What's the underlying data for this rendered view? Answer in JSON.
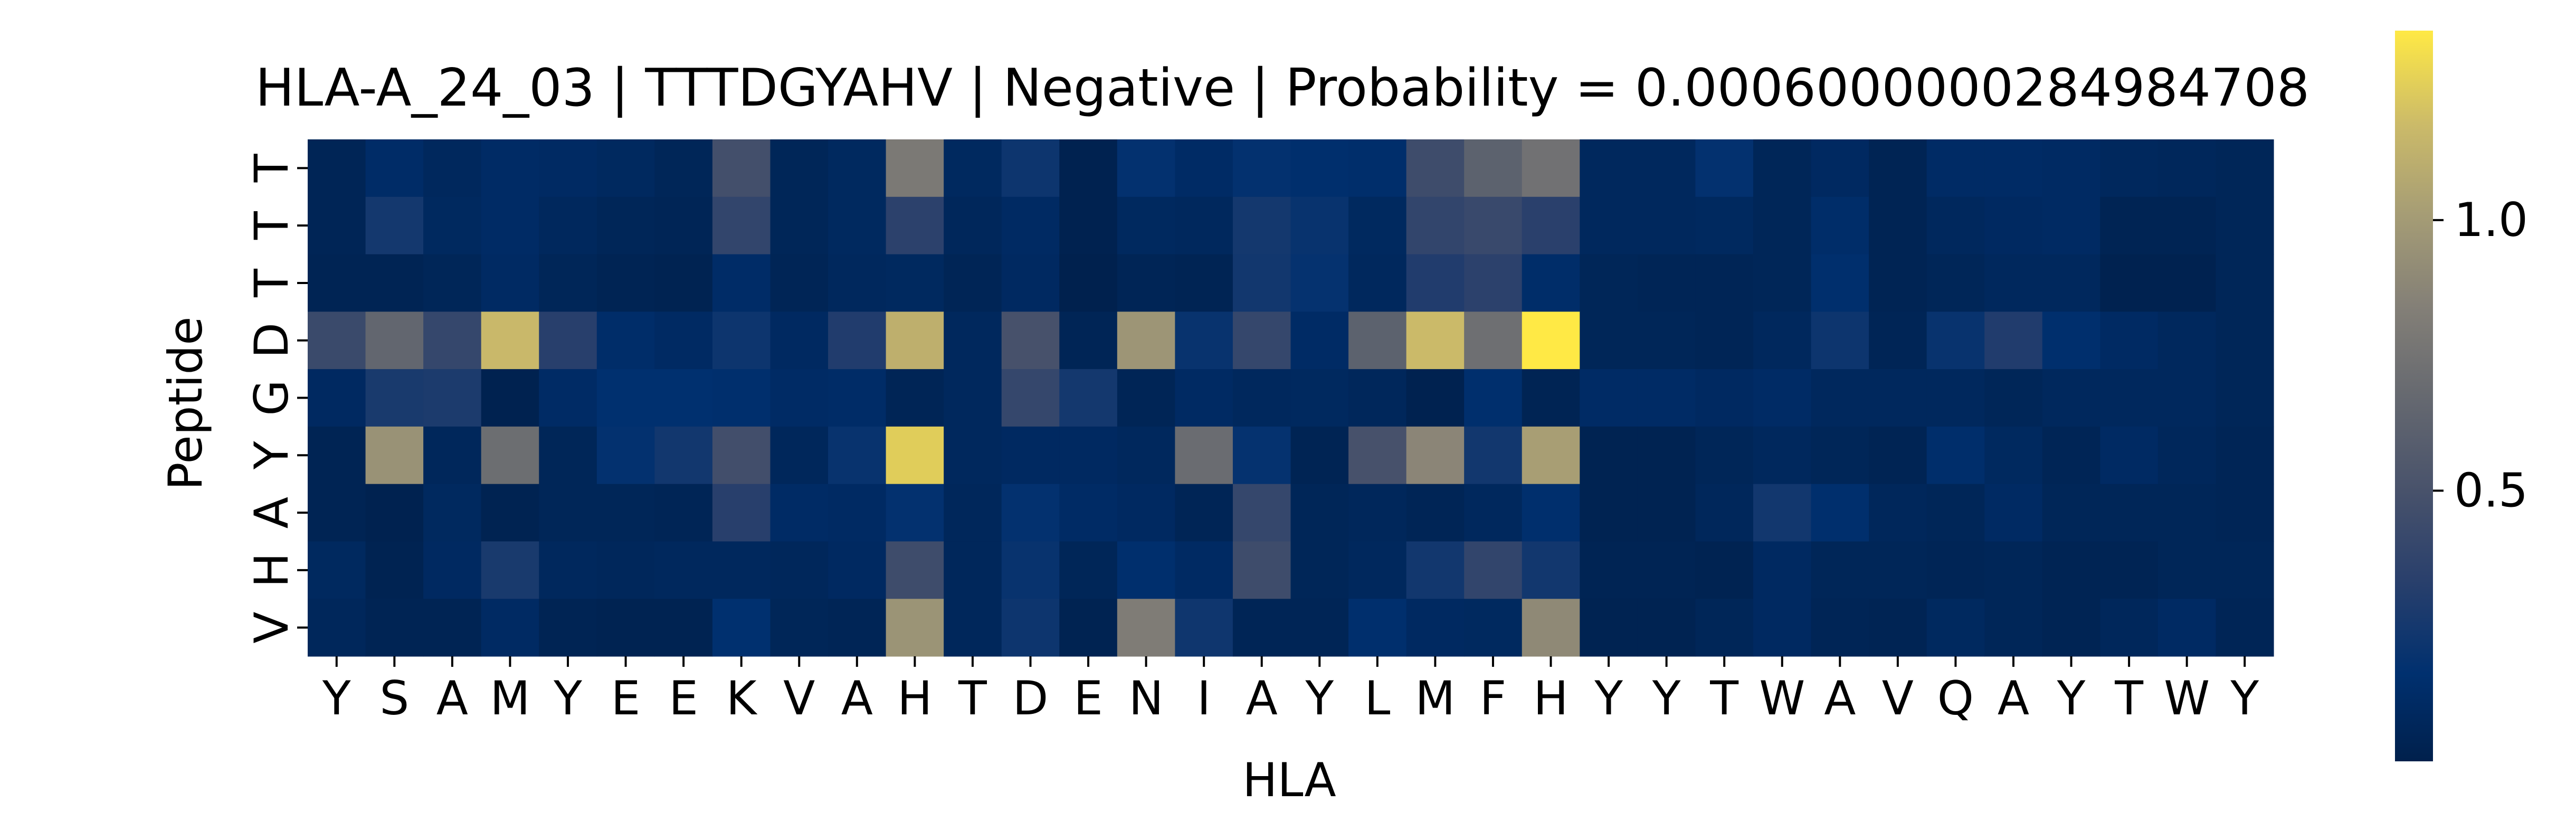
{
  "chart_data": {
    "type": "heatmap",
    "title": "HLA-A_24_03 | TTTDGYAHV | Negative | Probability = 0.0006000000284984708",
    "xlabel": "HLA",
    "ylabel": "Peptide",
    "x_categories": [
      "Y",
      "S",
      "A",
      "M",
      "Y",
      "E",
      "E",
      "K",
      "V",
      "A",
      "H",
      "T",
      "D",
      "E",
      "N",
      "I",
      "A",
      "Y",
      "L",
      "M",
      "F",
      "H",
      "Y",
      "Y",
      "T",
      "W",
      "A",
      "V",
      "Q",
      "A",
      "Y",
      "T",
      "W",
      "Y"
    ],
    "y_categories": [
      "T",
      "T",
      "T",
      "D",
      "G",
      "Y",
      "A",
      "H",
      "V"
    ],
    "colormap": "cividis",
    "colorbar": {
      "vmin": 0.0,
      "vmax": 1.35,
      "ticks": [
        0.5,
        1.0
      ],
      "tick_labels": [
        "0.5",
        "1.0"
      ]
    },
    "values": [
      [
        0.05,
        0.13,
        0.08,
        0.12,
        0.11,
        0.09,
        0.06,
        0.48,
        0.06,
        0.09,
        0.8,
        0.09,
        0.22,
        0.02,
        0.18,
        0.12,
        0.18,
        0.16,
        0.15,
        0.45,
        0.62,
        0.74,
        0.08,
        0.08,
        0.18,
        0.06,
        0.1,
        0.04,
        0.12,
        0.12,
        0.11,
        0.08,
        0.07,
        0.06
      ],
      [
        0.05,
        0.25,
        0.09,
        0.12,
        0.08,
        0.06,
        0.05,
        0.38,
        0.06,
        0.09,
        0.35,
        0.07,
        0.11,
        0.02,
        0.09,
        0.08,
        0.25,
        0.2,
        0.09,
        0.38,
        0.42,
        0.34,
        0.08,
        0.08,
        0.09,
        0.06,
        0.14,
        0.04,
        0.08,
        0.1,
        0.11,
        0.04,
        0.04,
        0.06
      ],
      [
        0.04,
        0.04,
        0.06,
        0.11,
        0.06,
        0.04,
        0.03,
        0.13,
        0.05,
        0.08,
        0.09,
        0.05,
        0.1,
        0.01,
        0.05,
        0.04,
        0.24,
        0.19,
        0.08,
        0.3,
        0.35,
        0.14,
        0.06,
        0.05,
        0.05,
        0.06,
        0.16,
        0.04,
        0.06,
        0.08,
        0.08,
        0.02,
        0.02,
        0.06
      ],
      [
        0.43,
        0.65,
        0.4,
        1.17,
        0.33,
        0.14,
        0.11,
        0.22,
        0.1,
        0.3,
        1.12,
        0.08,
        0.5,
        0.05,
        0.97,
        0.2,
        0.4,
        0.12,
        0.62,
        1.18,
        0.72,
        1.35,
        0.06,
        0.06,
        0.05,
        0.08,
        0.22,
        0.05,
        0.2,
        0.3,
        0.16,
        0.11,
        0.08,
        0.06
      ],
      [
        0.1,
        0.27,
        0.28,
        0.02,
        0.12,
        0.17,
        0.17,
        0.16,
        0.12,
        0.13,
        0.05,
        0.08,
        0.4,
        0.25,
        0.05,
        0.11,
        0.08,
        0.09,
        0.07,
        0.02,
        0.16,
        0.04,
        0.12,
        0.12,
        0.1,
        0.12,
        0.08,
        0.08,
        0.08,
        0.06,
        0.08,
        0.08,
        0.08,
        0.06
      ],
      [
        0.04,
        0.95,
        0.07,
        0.71,
        0.06,
        0.18,
        0.24,
        0.47,
        0.07,
        0.2,
        1.25,
        0.08,
        0.1,
        0.1,
        0.08,
        0.7,
        0.19,
        0.04,
        0.5,
        0.88,
        0.24,
        1.02,
        0.03,
        0.03,
        0.06,
        0.08,
        0.06,
        0.04,
        0.15,
        0.09,
        0.05,
        0.11,
        0.07,
        0.05
      ],
      [
        0.04,
        0.02,
        0.09,
        0.03,
        0.06,
        0.06,
        0.05,
        0.33,
        0.12,
        0.11,
        0.18,
        0.07,
        0.18,
        0.12,
        0.1,
        0.05,
        0.4,
        0.06,
        0.07,
        0.05,
        0.08,
        0.16,
        0.03,
        0.03,
        0.07,
        0.24,
        0.16,
        0.07,
        0.06,
        0.11,
        0.06,
        0.06,
        0.06,
        0.05
      ],
      [
        0.09,
        0.03,
        0.1,
        0.27,
        0.08,
        0.07,
        0.08,
        0.08,
        0.07,
        0.1,
        0.45,
        0.07,
        0.2,
        0.06,
        0.16,
        0.11,
        0.45,
        0.06,
        0.08,
        0.24,
        0.38,
        0.24,
        0.04,
        0.04,
        0.03,
        0.1,
        0.06,
        0.06,
        0.05,
        0.06,
        0.04,
        0.04,
        0.06,
        0.06
      ],
      [
        0.07,
        0.04,
        0.04,
        0.11,
        0.04,
        0.03,
        0.03,
        0.17,
        0.06,
        0.05,
        0.96,
        0.07,
        0.22,
        0.03,
        0.82,
        0.23,
        0.05,
        0.05,
        0.16,
        0.1,
        0.09,
        0.9,
        0.03,
        0.03,
        0.06,
        0.1,
        0.05,
        0.04,
        0.09,
        0.06,
        0.04,
        0.07,
        0.11,
        0.05
      ]
    ]
  }
}
